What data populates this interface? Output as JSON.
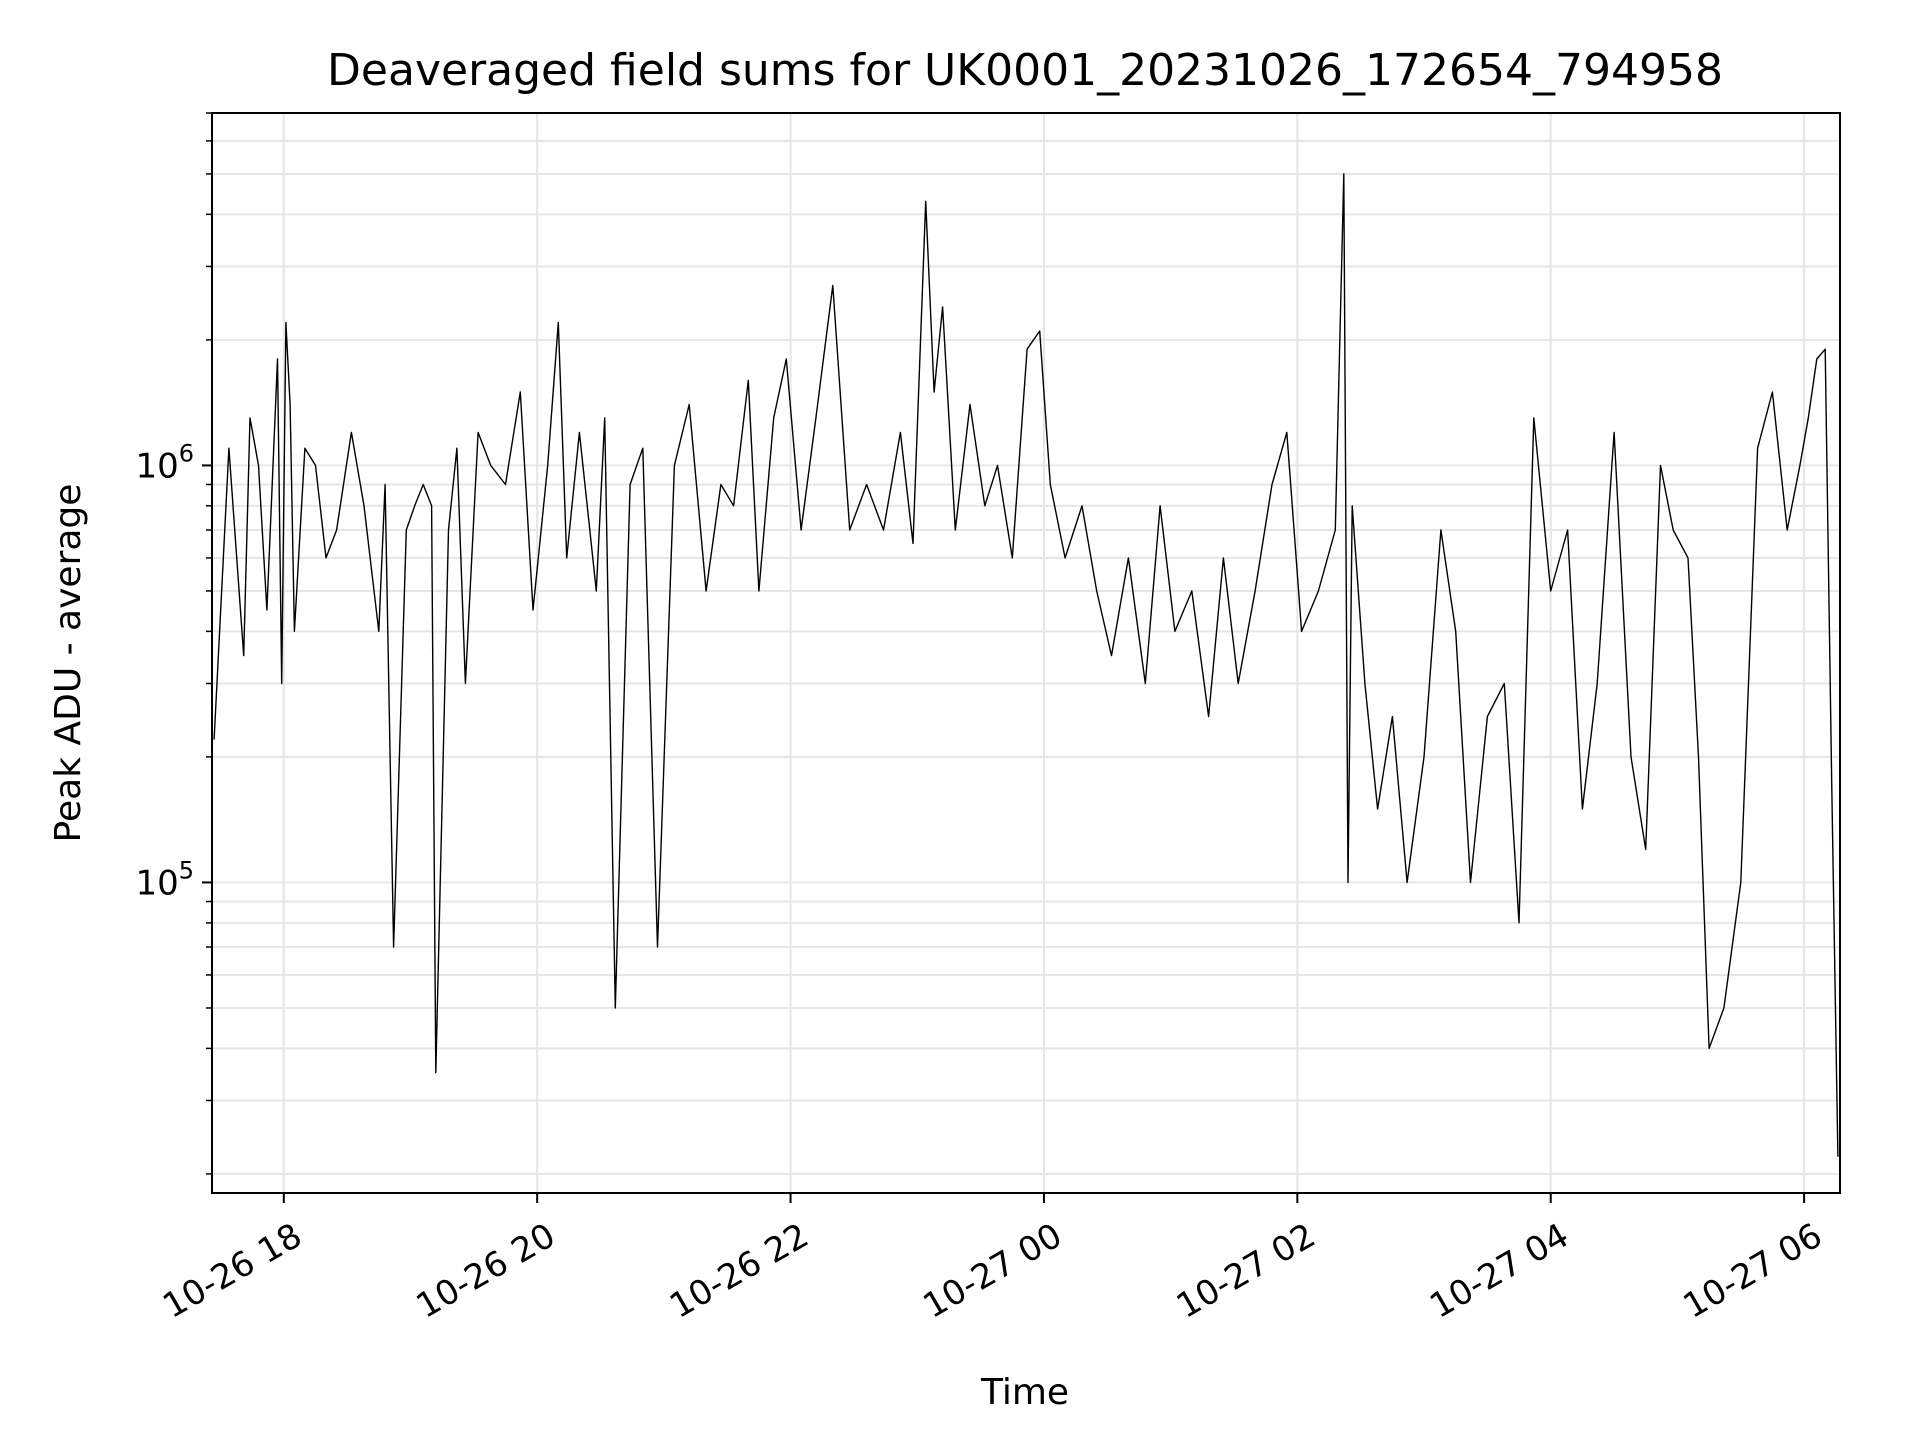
{
  "chart_data": {
    "type": "line",
    "title": "Deaveraged field sums for UK0001_20231026_172654_794958",
    "xlabel": "Time",
    "ylabel": "Peak ADU - average",
    "y_scale": "log",
    "ylim": [
      18000,
      7000000
    ],
    "xlim": [
      "2023-10-26 17:26",
      "2023-10-27 06:17"
    ],
    "grid": true,
    "line_color": "#000000",
    "grid_color": "#e6e6e6",
    "x_ticks": [
      {
        "x": "2023-10-26 18:00",
        "label": "10-26 18"
      },
      {
        "x": "2023-10-26 20:00",
        "label": "10-26 20"
      },
      {
        "x": "2023-10-26 22:00",
        "label": "10-26 22"
      },
      {
        "x": "2023-10-27 00:00",
        "label": "10-27 00"
      },
      {
        "x": "2023-10-27 02:00",
        "label": "10-27 02"
      },
      {
        "x": "2023-10-27 04:00",
        "label": "10-27 04"
      },
      {
        "x": "2023-10-27 06:00",
        "label": "10-27 06"
      }
    ],
    "y_ticks": [
      {
        "value": 100000,
        "base": "10",
        "exp": "5"
      },
      {
        "value": 1000000,
        "base": "10",
        "exp": "6"
      }
    ],
    "series": [
      {
        "x": [
          "2023-10-26 17:27",
          "2023-10-26 17:34",
          "2023-10-26 17:41",
          "2023-10-26 17:44",
          "2023-10-26 17:48",
          "2023-10-26 17:52",
          "2023-10-26 17:57",
          "2023-10-26 17:59",
          "2023-10-26 18:01",
          "2023-10-26 18:03",
          "2023-10-26 18:05",
          "2023-10-26 18:10",
          "2023-10-26 18:15",
          "2023-10-26 18:20",
          "2023-10-26 18:25",
          "2023-10-26 18:32",
          "2023-10-26 18:38",
          "2023-10-26 18:45",
          "2023-10-26 18:48",
          "2023-10-26 18:52",
          "2023-10-26 18:58",
          "2023-10-26 19:02",
          "2023-10-26 19:06",
          "2023-10-26 19:10",
          "2023-10-26 19:12",
          "2023-10-26 19:18",
          "2023-10-26 19:22",
          "2023-10-26 19:26",
          "2023-10-26 19:32",
          "2023-10-26 19:38",
          "2023-10-26 19:45",
          "2023-10-26 19:52",
          "2023-10-26 19:58",
          "2023-10-26 20:05",
          "2023-10-26 20:10",
          "2023-10-26 20:14",
          "2023-10-26 20:20",
          "2023-10-26 20:28",
          "2023-10-26 20:32",
          "2023-10-26 20:37",
          "2023-10-26 20:44",
          "2023-10-26 20:50",
          "2023-10-26 20:57",
          "2023-10-26 21:05",
          "2023-10-26 21:12",
          "2023-10-26 21:20",
          "2023-10-26 21:27",
          "2023-10-26 21:33",
          "2023-10-26 21:40",
          "2023-10-26 21:45",
          "2023-10-26 21:52",
          "2023-10-26 21:58",
          "2023-10-26 22:05",
          "2023-10-26 22:12",
          "2023-10-26 22:20",
          "2023-10-26 22:28",
          "2023-10-26 22:36",
          "2023-10-26 22:44",
          "2023-10-26 22:52",
          "2023-10-26 22:58",
          "2023-10-26 23:04",
          "2023-10-26 23:08",
          "2023-10-26 23:12",
          "2023-10-26 23:18",
          "2023-10-26 23:25",
          "2023-10-26 23:32",
          "2023-10-26 23:38",
          "2023-10-26 23:45",
          "2023-10-26 23:52",
          "2023-10-26 23:58",
          "2023-10-27 00:03",
          "2023-10-27 00:10",
          "2023-10-27 00:18",
          "2023-10-27 00:25",
          "2023-10-27 00:32",
          "2023-10-27 00:40",
          "2023-10-27 00:48",
          "2023-10-27 00:55",
          "2023-10-27 01:02",
          "2023-10-27 01:10",
          "2023-10-27 01:18",
          "2023-10-27 01:25",
          "2023-10-27 01:32",
          "2023-10-27 01:40",
          "2023-10-27 01:48",
          "2023-10-27 01:55",
          "2023-10-27 02:02",
          "2023-10-27 02:10",
          "2023-10-27 02:18",
          "2023-10-27 02:22",
          "2023-10-27 02:24",
          "2023-10-27 02:26",
          "2023-10-27 02:32",
          "2023-10-27 02:38",
          "2023-10-27 02:45",
          "2023-10-27 02:52",
          "2023-10-27 03:00",
          "2023-10-27 03:08",
          "2023-10-27 03:15",
          "2023-10-27 03:22",
          "2023-10-27 03:30",
          "2023-10-27 03:38",
          "2023-10-27 03:45",
          "2023-10-27 03:52",
          "2023-10-27 04:00",
          "2023-10-27 04:08",
          "2023-10-27 04:15",
          "2023-10-27 04:22",
          "2023-10-27 04:30",
          "2023-10-27 04:38",
          "2023-10-27 04:45",
          "2023-10-27 04:52",
          "2023-10-27 04:58",
          "2023-10-27 05:05",
          "2023-10-27 05:10",
          "2023-10-27 05:15",
          "2023-10-27 05:22",
          "2023-10-27 05:30",
          "2023-10-27 05:38",
          "2023-10-27 05:45",
          "2023-10-27 05:52",
          "2023-10-27 05:58",
          "2023-10-27 06:02",
          "2023-10-27 06:06",
          "2023-10-27 06:10",
          "2023-10-27 06:13",
          "2023-10-27 06:16"
        ],
        "y": [
          220000,
          1100000,
          350000,
          1300000,
          1000000,
          450000,
          1800000,
          300000,
          2200000,
          1400000,
          400000,
          1100000,
          1000000,
          600000,
          700000,
          1200000,
          800000,
          400000,
          900000,
          70000,
          700000,
          800000,
          900000,
          800000,
          35000,
          700000,
          1100000,
          300000,
          1200000,
          1000000,
          900000,
          1500000,
          450000,
          1000000,
          2200000,
          600000,
          1200000,
          500000,
          1300000,
          50000,
          900000,
          1100000,
          70000,
          1000000,
          1400000,
          500000,
          900000,
          800000,
          1600000,
          500000,
          1300000,
          1800000,
          700000,
          1300000,
          2700000,
          700000,
          900000,
          700000,
          1200000,
          650000,
          4300000,
          1500000,
          2400000,
          700000,
          1400000,
          800000,
          1000000,
          600000,
          1900000,
          2100000,
          900000,
          600000,
          800000,
          500000,
          350000,
          600000,
          300000,
          800000,
          400000,
          500000,
          250000,
          600000,
          300000,
          500000,
          900000,
          1200000,
          400000,
          500000,
          700000,
          5000000,
          100000,
          800000,
          300000,
          150000,
          250000,
          100000,
          200000,
          700000,
          400000,
          100000,
          250000,
          300000,
          80000,
          1300000,
          500000,
          700000,
          150000,
          300000,
          1200000,
          200000,
          120000,
          1000000,
          700000,
          600000,
          200000,
          40000,
          50000,
          100000,
          1100000,
          1500000,
          700000,
          1000000,
          1300000,
          1800000,
          1900000,
          180000,
          22000
        ]
      }
    ]
  }
}
